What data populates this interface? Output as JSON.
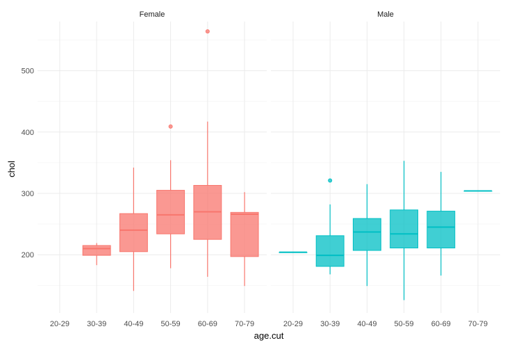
{
  "chart_data": {
    "type": "boxplot",
    "xlabel": "age.cut",
    "ylabel": "chol",
    "ylim": [
      105,
      580
    ],
    "yticks": [
      200,
      300,
      400,
      500
    ],
    "categories": [
      "20-29",
      "30-39",
      "40-49",
      "50-59",
      "60-69",
      "70-79"
    ],
    "grid": true,
    "legend": "none",
    "facets": [
      {
        "label": "Female",
        "color": "#F8766D",
        "boxes": [
          {
            "category": "30-39",
            "low": 183,
            "q1": 199,
            "median": 210,
            "q3": 215,
            "high": 219,
            "outliers": []
          },
          {
            "category": "40-49",
            "low": 141,
            "q1": 205,
            "median": 240,
            "q3": 267,
            "high": 342,
            "outliers": []
          },
          {
            "category": "50-59",
            "low": 178,
            "q1": 234,
            "median": 265,
            "q3": 305,
            "high": 354,
            "outliers": [
              409
            ]
          },
          {
            "category": "60-69",
            "low": 164,
            "q1": 225,
            "median": 270,
            "q3": 313,
            "high": 417,
            "outliers": [
              564
            ]
          },
          {
            "category": "70-79",
            "low": 149,
            "q1": 197,
            "median": 266,
            "q3": 269,
            "high": 302,
            "outliers": []
          }
        ]
      },
      {
        "label": "Male",
        "color": "#00BFC4",
        "boxes": [
          {
            "category": "20-29",
            "low": 204,
            "q1": 204,
            "median": 204,
            "q3": 204,
            "high": 204,
            "outliers": []
          },
          {
            "category": "30-39",
            "low": 168,
            "q1": 181,
            "median": 199,
            "q3": 231,
            "high": 282,
            "outliers": [
              321
            ]
          },
          {
            "category": "40-49",
            "low": 149,
            "q1": 207,
            "median": 237,
            "q3": 259,
            "high": 315,
            "outliers": []
          },
          {
            "category": "50-59",
            "low": 126,
            "q1": 211,
            "median": 234,
            "q3": 273,
            "high": 353,
            "outliers": []
          },
          {
            "category": "60-69",
            "low": 166,
            "q1": 211,
            "median": 245,
            "q3": 271,
            "high": 335,
            "outliers": []
          },
          {
            "category": "70-79",
            "low": 304,
            "q1": 304,
            "median": 304,
            "q3": 304,
            "high": 304,
            "outliers": []
          }
        ]
      }
    ]
  }
}
